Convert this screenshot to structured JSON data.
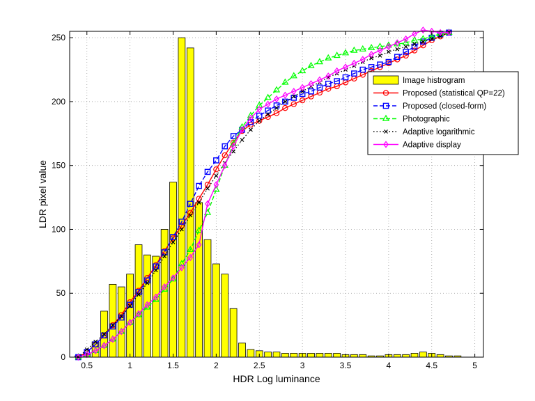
{
  "chart_data": {
    "type": "line",
    "title": "",
    "xlabel": "HDR Log luminance",
    "ylabel": "LDR pixel value",
    "xlim": [
      0.3,
      5.1
    ],
    "ylim": [
      0,
      255
    ],
    "xticks": [
      0.5,
      1,
      1.5,
      2,
      2.5,
      3,
      3.5,
      4,
      4.5,
      5
    ],
    "xtick_labels": [
      "0.5",
      "1",
      "1.5",
      "2",
      "2.5",
      "3",
      "3.5",
      "4",
      "4.5",
      "5"
    ],
    "yticks": [
      0,
      50,
      100,
      150,
      200,
      250
    ],
    "ytick_labels": [
      "0",
      "50",
      "100",
      "150",
      "200",
      "250"
    ],
    "grid": true,
    "legend_position": "upper-right",
    "histogram": {
      "name": "Image histrogram",
      "color": "#ffff00",
      "bin_width": 0.1,
      "x": [
        0.4,
        0.5,
        0.6,
        0.7,
        0.8,
        0.9,
        1.0,
        1.1,
        1.2,
        1.3,
        1.4,
        1.5,
        1.6,
        1.7,
        1.8,
        1.9,
        2.0,
        2.1,
        2.2,
        2.3,
        2.4,
        2.5,
        2.6,
        2.7,
        2.8,
        2.9,
        3.0,
        3.1,
        3.2,
        3.3,
        3.4,
        3.5,
        3.6,
        3.7,
        3.8,
        3.9,
        4.0,
        4.1,
        4.2,
        4.3,
        4.4,
        4.5,
        4.6,
        4.7,
        4.8
      ],
      "values": [
        1,
        3,
        12,
        36,
        57,
        55,
        65,
        88,
        80,
        79,
        100,
        137,
        250,
        242,
        121,
        92,
        73,
        65,
        38,
        11,
        6,
        5,
        4,
        4,
        3,
        3,
        3,
        3,
        3,
        3,
        3,
        2,
        2,
        2,
        1,
        1,
        2,
        2,
        2,
        3,
        4,
        3,
        2,
        1,
        1
      ]
    },
    "series": [
      {
        "name": "Proposed (statistical QP=22)",
        "color": "#ff0000",
        "line_style": "solid",
        "marker": "circle",
        "x": [
          0.4,
          0.5,
          0.6,
          0.7,
          0.8,
          0.9,
          1.0,
          1.1,
          1.2,
          1.3,
          1.4,
          1.5,
          1.6,
          1.7,
          1.8,
          1.9,
          2.0,
          2.1,
          2.2,
          2.3,
          2.4,
          2.5,
          2.6,
          2.7,
          2.8,
          2.9,
          3.0,
          3.1,
          3.2,
          3.3,
          3.4,
          3.5,
          3.6,
          3.7,
          3.8,
          3.9,
          4.0,
          4.1,
          4.2,
          4.3,
          4.4,
          4.5,
          4.6,
          4.7
        ],
        "y": [
          0,
          4,
          10,
          17,
          25,
          33,
          43,
          52,
          62,
          72,
          83,
          93,
          103,
          113,
          124,
          135,
          147,
          158,
          168,
          177,
          182,
          185,
          188,
          191,
          195,
          198,
          201,
          204,
          207,
          210,
          212,
          215,
          218,
          221,
          224,
          227,
          230,
          233,
          236,
          240,
          244,
          248,
          251,
          254
        ]
      },
      {
        "name": "Proposed (closed-form)",
        "color": "#0000ff",
        "line_style": "dashed",
        "marker": "square",
        "x": [
          0.4,
          0.5,
          0.6,
          0.7,
          0.8,
          0.9,
          1.0,
          1.1,
          1.2,
          1.3,
          1.4,
          1.5,
          1.6,
          1.7,
          1.8,
          1.9,
          2.0,
          2.1,
          2.2,
          2.3,
          2.4,
          2.5,
          2.6,
          2.7,
          2.8,
          2.9,
          3.0,
          3.1,
          3.2,
          3.3,
          3.4,
          3.5,
          3.6,
          3.7,
          3.8,
          3.9,
          4.0,
          4.1,
          4.2,
          4.3,
          4.4,
          4.5,
          4.6,
          4.7
        ],
        "y": [
          0,
          4,
          10,
          17,
          24,
          31,
          41,
          51,
          60,
          71,
          82,
          94,
          106,
          120,
          134,
          145,
          154,
          165,
          173,
          178,
          184,
          189,
          193,
          197,
          200,
          203,
          206,
          208,
          211,
          214,
          216,
          219,
          222,
          225,
          227,
          229,
          231,
          235,
          239,
          243,
          247,
          250,
          253,
          254
        ]
      },
      {
        "name": "Photographic",
        "color": "#00ff00",
        "line_style": "dashed",
        "marker": "triangle",
        "x": [
          0.4,
          0.5,
          0.6,
          0.7,
          0.8,
          0.9,
          1.0,
          1.1,
          1.2,
          1.3,
          1.4,
          1.5,
          1.6,
          1.7,
          1.8,
          1.9,
          2.0,
          2.1,
          2.2,
          2.3,
          2.4,
          2.5,
          2.6,
          2.7,
          2.8,
          2.9,
          3.0,
          3.1,
          3.2,
          3.3,
          3.4,
          3.5,
          3.6,
          3.7,
          3.8,
          3.9,
          4.0,
          4.1,
          4.2,
          4.3,
          4.4,
          4.5,
          4.6,
          4.7
        ],
        "y": [
          0,
          2,
          5,
          9,
          14,
          20,
          27,
          33,
          39,
          45,
          53,
          61,
          73,
          84,
          99,
          113,
          131,
          150,
          167,
          180,
          189,
          197,
          203,
          209,
          215,
          220,
          224,
          228,
          231,
          234,
          236,
          238,
          240,
          241,
          242,
          243,
          244,
          245,
          246,
          248,
          249,
          251,
          253,
          254
        ]
      },
      {
        "name": "Adaptive logarithmic",
        "color": "#000000",
        "line_style": "dotted",
        "marker": "x",
        "x": [
          0.4,
          0.5,
          0.6,
          0.7,
          0.8,
          0.9,
          1.0,
          1.1,
          1.2,
          1.3,
          1.4,
          1.5,
          1.6,
          1.7,
          1.8,
          1.9,
          2.0,
          2.1,
          2.2,
          2.3,
          2.4,
          2.5,
          2.6,
          2.7,
          2.8,
          2.9,
          3.0,
          3.1,
          3.2,
          3.3,
          3.4,
          3.5,
          3.6,
          3.7,
          3.8,
          3.9,
          4.0,
          4.1,
          4.2,
          4.3,
          4.4,
          4.5,
          4.6,
          4.7
        ],
        "y": [
          0,
          6,
          12,
          18,
          25,
          32,
          40,
          49,
          58,
          68,
          79,
          90,
          100,
          111,
          121,
          132,
          142,
          152,
          161,
          170,
          178,
          185,
          190,
          195,
          200,
          204,
          208,
          212,
          215,
          219,
          222,
          225,
          228,
          231,
          234,
          236,
          239,
          241,
          243,
          245,
          247,
          249,
          251,
          254
        ]
      },
      {
        "name": "Adaptive display",
        "color": "#ff00ff",
        "line_style": "solid",
        "marker": "diamond",
        "x": [
          0.4,
          0.5,
          0.6,
          0.7,
          0.8,
          0.9,
          1.0,
          1.1,
          1.2,
          1.3,
          1.4,
          1.5,
          1.6,
          1.7,
          1.8,
          1.9,
          2.0,
          2.1,
          2.2,
          2.3,
          2.4,
          2.5,
          2.6,
          2.7,
          2.8,
          2.9,
          3.0,
          3.1,
          3.2,
          3.3,
          3.4,
          3.5,
          3.6,
          3.7,
          3.8,
          3.9,
          4.0,
          4.1,
          4.2,
          4.3,
          4.4,
          4.5,
          4.6,
          4.7
        ],
        "y": [
          0,
          2,
          5,
          9,
          14,
          20,
          27,
          34,
          41,
          47,
          55,
          62,
          70,
          78,
          88,
          120,
          135,
          150,
          165,
          178,
          187,
          194,
          198,
          202,
          205,
          208,
          211,
          214,
          217,
          220,
          224,
          227,
          230,
          233,
          237,
          240,
          243,
          246,
          249,
          253,
          256,
          255,
          254,
          254
        ]
      }
    ]
  }
}
